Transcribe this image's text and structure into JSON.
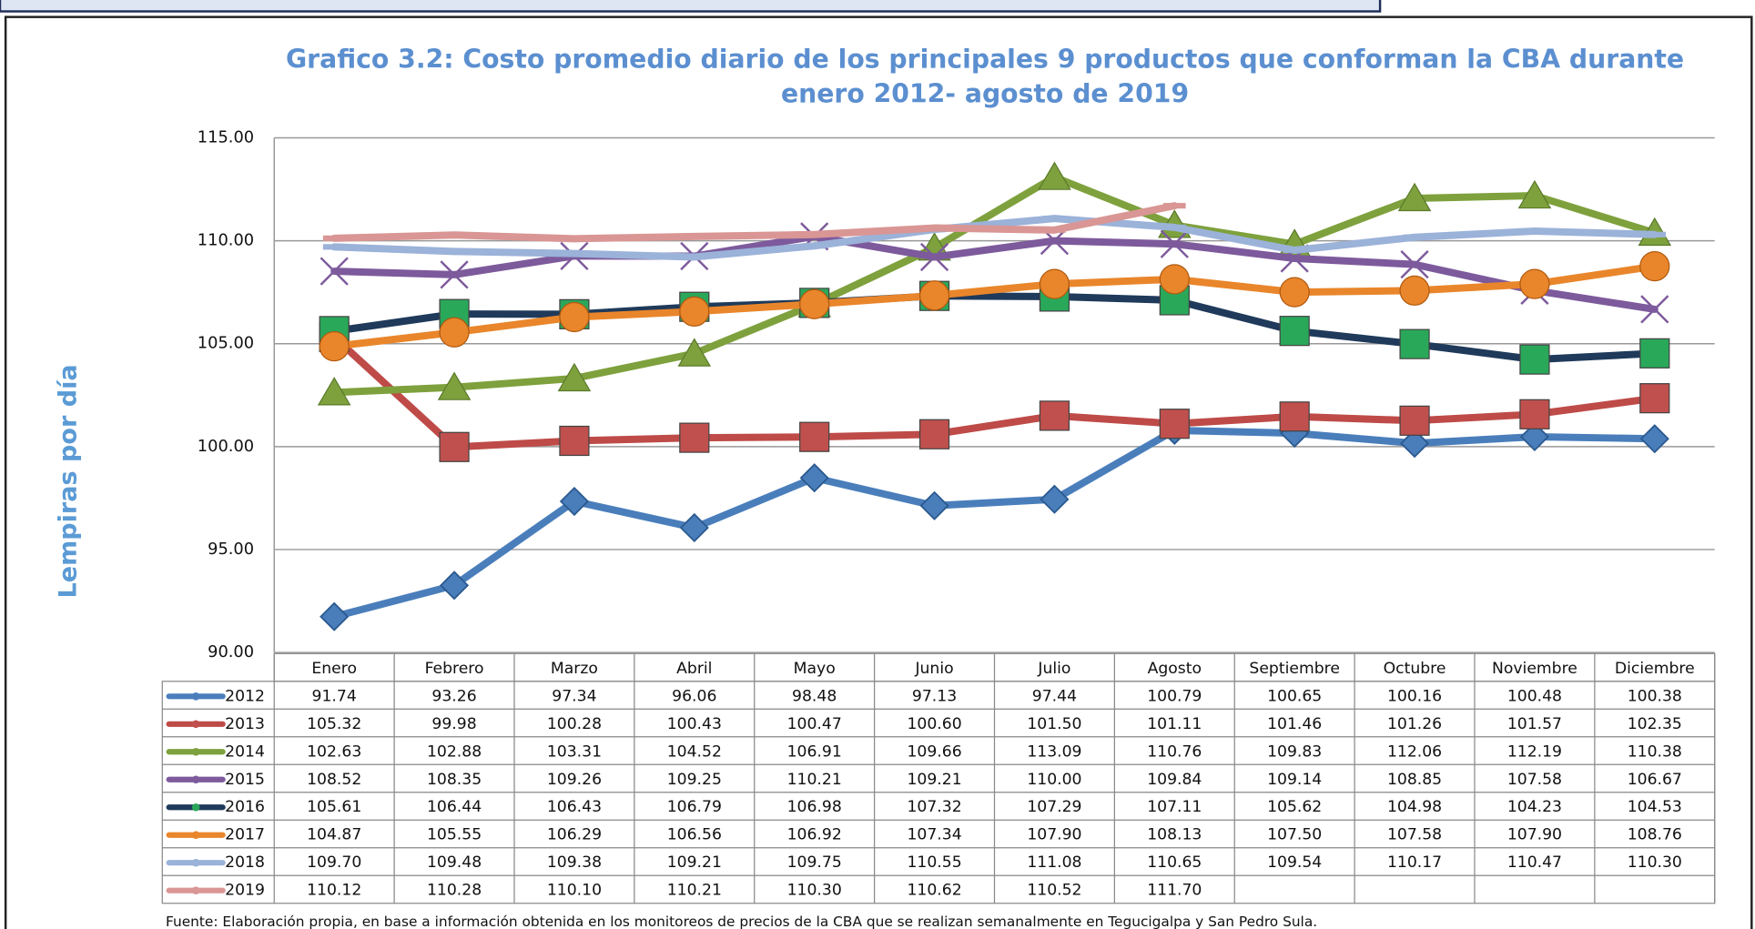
{
  "chart_data": {
    "type": "line",
    "title": [
      "Grafico 3.2: Costo promedio diario de los principales 9 productos que conforman la CBA durante",
      "enero 2012- agosto de 2019"
    ],
    "y_label": "Lempiras por día",
    "source": "Fuente: Elaboración propia, en base a información obtenida en los monitoreos de precios de la CBA que se realizan semanalmente en Tegucigalpa y San Pedro Sula.",
    "categories": [
      "Enero",
      "Febrero",
      "Marzo",
      "Abril",
      "Mayo",
      "Junio",
      "Julio",
      "Agosto",
      "Septiembre",
      "Octubre",
      "Noviembre",
      "Diciembre"
    ],
    "ylim": [
      90,
      115
    ],
    "yticks": [
      {
        "value": 90,
        "label": "90.00"
      },
      {
        "value": 95,
        "label": "95.00"
      },
      {
        "value": 100,
        "label": "100.00"
      },
      {
        "value": 105,
        "label": "105.00"
      },
      {
        "value": 110,
        "label": "110.00"
      },
      {
        "value": 115,
        "label": "115.00"
      }
    ],
    "grid": true,
    "series": [
      {
        "name": "2012",
        "color": "#4a7ebb",
        "marker": "diamond",
        "marker_color": "#4a7ebb",
        "values": [
          91.74,
          93.26,
          97.34,
          96.06,
          98.48,
          97.13,
          97.44,
          100.79,
          100.65,
          100.16,
          100.48,
          100.38
        ],
        "value_labels": [
          "91.74",
          "93.26",
          "97.34",
          "96.06",
          "98.48",
          "97.13",
          "97.44",
          "100.79",
          "100.65",
          "100.16",
          "100.48",
          "100.38"
        ]
      },
      {
        "name": "2013",
        "color": "#be4b48",
        "marker": "square",
        "marker_color": "#c0504d",
        "values": [
          105.32,
          99.98,
          100.28,
          100.43,
          100.47,
          100.6,
          101.5,
          101.11,
          101.46,
          101.26,
          101.57,
          102.35
        ],
        "value_labels": [
          "105.32",
          "99.98",
          "100.28",
          "100.43",
          "100.47",
          "100.60",
          "101.50",
          "101.11",
          "101.46",
          "101.26",
          "101.57",
          "102.35"
        ]
      },
      {
        "name": "2014",
        "color": "#7ea13d",
        "marker": "triangle",
        "marker_color": "#7ea13d",
        "values": [
          102.63,
          102.88,
          103.31,
          104.52,
          106.91,
          109.66,
          113.09,
          110.76,
          109.83,
          112.06,
          112.19,
          110.38
        ],
        "value_labels": [
          "102.63",
          "102.88",
          "103.31",
          "104.52",
          "106.91",
          "109.66",
          "113.09",
          "110.76",
          "109.83",
          "112.06",
          "112.19",
          "110.38"
        ]
      },
      {
        "name": "2015",
        "color": "#7d5a9c",
        "marker": "cross",
        "marker_color": "#7d5a9c",
        "values": [
          108.52,
          108.35,
          109.26,
          109.25,
          110.21,
          109.21,
          110.0,
          109.84,
          109.14,
          108.85,
          107.58,
          106.67
        ],
        "value_labels": [
          "108.52",
          "108.35",
          "109.26",
          "109.25",
          "110.21",
          "109.21",
          "110.00",
          "109.84",
          "109.14",
          "108.85",
          "107.58",
          "106.67"
        ]
      },
      {
        "name": "2016",
        "color": "#1f3a5a",
        "marker": "square",
        "marker_color": "#2aa85a",
        "values": [
          105.61,
          106.44,
          106.43,
          106.79,
          106.98,
          107.32,
          107.29,
          107.11,
          105.62,
          104.98,
          104.23,
          104.53
        ],
        "value_labels": [
          "105.61",
          "106.44",
          "106.43",
          "106.79",
          "106.98",
          "107.32",
          "107.29",
          "107.11",
          "105.62",
          "104.98",
          "104.23",
          "104.53"
        ]
      },
      {
        "name": "2017",
        "color": "#e9862b",
        "marker": "circle",
        "marker_color": "#e9862b",
        "values": [
          104.87,
          105.55,
          106.29,
          106.56,
          106.92,
          107.34,
          107.9,
          108.13,
          107.5,
          107.58,
          107.9,
          108.76
        ],
        "value_labels": [
          "104.87",
          "105.55",
          "106.29",
          "106.56",
          "106.92",
          "107.34",
          "107.90",
          "108.13",
          "107.50",
          "107.58",
          "107.90",
          "108.76"
        ]
      },
      {
        "name": "2018",
        "color": "#9bb2d9",
        "marker": "dash",
        "marker_color": "#9bb2d9",
        "values": [
          109.7,
          109.48,
          109.38,
          109.21,
          109.75,
          110.55,
          111.08,
          110.65,
          109.54,
          110.17,
          110.47,
          110.3
        ],
        "value_labels": [
          "109.70",
          "109.48",
          "109.38",
          "109.21",
          "109.75",
          "110.55",
          "111.08",
          "110.65",
          "109.54",
          "110.17",
          "110.47",
          "110.30"
        ]
      },
      {
        "name": "2019",
        "color": "#d99694",
        "marker": "dash",
        "marker_color": "#d99694",
        "values": [
          110.12,
          110.28,
          110.1,
          110.21,
          110.3,
          110.62,
          110.52,
          111.7,
          null,
          null,
          null,
          null
        ],
        "value_labels": [
          "110.12",
          "110.28",
          "110.10",
          "110.21",
          "110.30",
          "110.62",
          "110.52",
          "111.70",
          null,
          null,
          null,
          null
        ]
      }
    ]
  }
}
